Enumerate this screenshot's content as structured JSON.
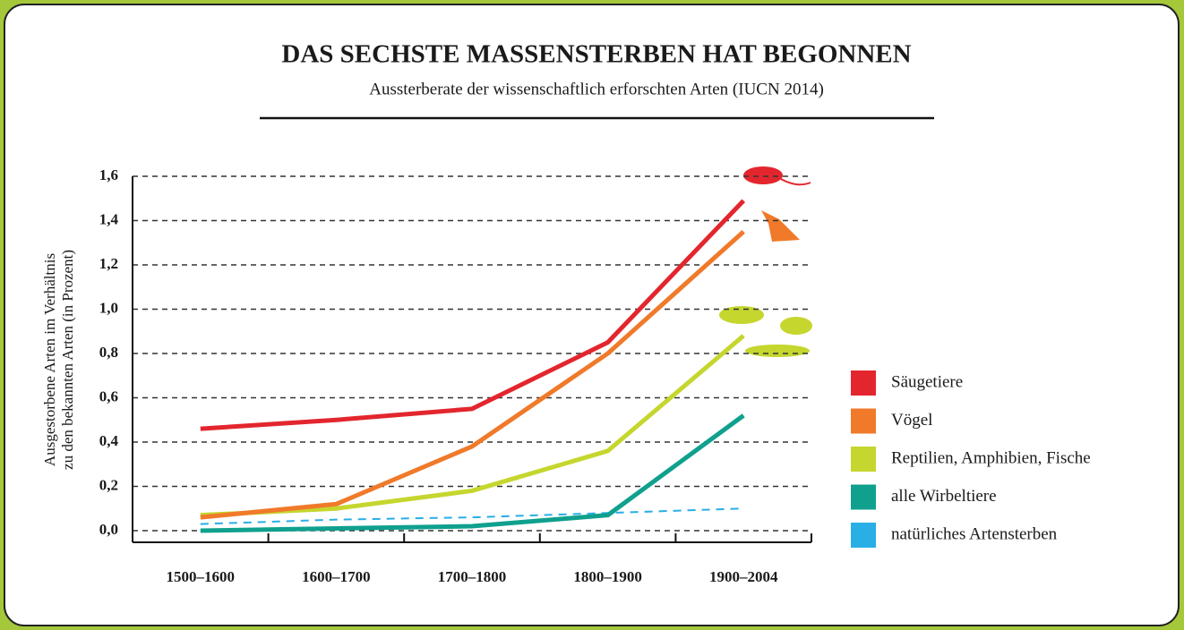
{
  "chart_data": {
    "type": "line",
    "title": "DAS SECHSTE MASSENSTERBEN HAT BEGONNEN",
    "subtitle": "Aussterberate der wissenschaftlich erforschten Arten (IUCN 2014)",
    "ylabel": [
      "Ausgestorbene Arten im Verhältnis",
      "zu den bekannten Arten (in Prozent)"
    ],
    "categories": [
      "1500–1600",
      "1600–1700",
      "1700–1800",
      "1800–1900",
      "1900–2004"
    ],
    "series": [
      {
        "name": "Säugetiere",
        "color": "#e3262e",
        "values": [
          0.46,
          0.5,
          0.55,
          0.85,
          1.49
        ]
      },
      {
        "name": "Vögel",
        "color": "#f07a2a",
        "values": [
          0.06,
          0.12,
          0.38,
          0.8,
          1.35
        ]
      },
      {
        "name": "Reptilien, Amphibien, Fische",
        "color": "#c5d62e",
        "values": [
          0.07,
          0.1,
          0.18,
          0.36,
          0.88
        ]
      },
      {
        "name": "alle Wirbeltiere",
        "color": "#10a08e",
        "values": [
          0.0,
          0.01,
          0.02,
          0.07,
          0.52
        ]
      },
      {
        "name": "natürliches Artensterben",
        "color": "#29aee6",
        "linestyle": "dashed",
        "values": [
          0.03,
          0.05,
          0.06,
          0.08,
          0.1
        ]
      }
    ],
    "ylim": [
      0,
      1.6
    ],
    "yticks": [
      {
        "value": 0,
        "label": "0,0"
      },
      {
        "value": 0.2,
        "label": "0,2"
      },
      {
        "value": 0.4,
        "label": "0,4"
      },
      {
        "value": 0.6,
        "label": "0,6"
      },
      {
        "value": 0.8,
        "label": "0,8"
      },
      {
        "value": 1.0,
        "label": "1,0"
      },
      {
        "value": 1.2,
        "label": "1,2"
      },
      {
        "value": 1.4,
        "label": "1,4"
      },
      {
        "value": 1.6,
        "label": "1,6"
      }
    ],
    "grid": true,
    "legend": "right"
  }
}
